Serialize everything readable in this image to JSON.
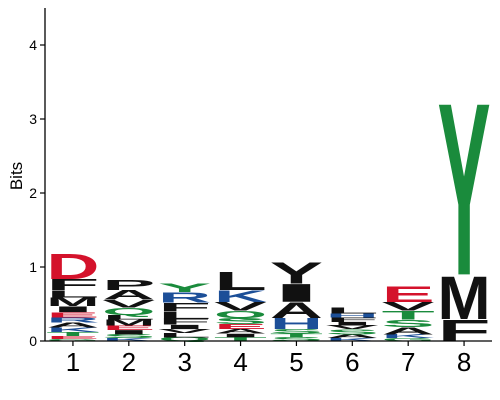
{
  "chart_data": {
    "type": "sequence-logo",
    "ylabel": "Bits",
    "ylim": [
      0,
      4.5
    ],
    "yticks": [
      0,
      1,
      2,
      3,
      4
    ],
    "grid": false,
    "colors": {
      "acidic": "#d4122b",
      "basic": "#1c4f98",
      "polar": "#1a8b3c",
      "hydrophobic": "#111111",
      "neutral": "#8a8a8a"
    },
    "positions": [
      {
        "position": "1",
        "letters": [
          {
            "letter": "G",
            "bits": 0.03,
            "color": "#1a8b3c"
          },
          {
            "letter": "E",
            "bits": 0.04,
            "color": "#d4122b"
          },
          {
            "letter": "T",
            "bits": 0.05,
            "color": "#1a8b3c"
          },
          {
            "letter": "K",
            "bits": 0.06,
            "color": "#1c4f98"
          },
          {
            "letter": "A",
            "bits": 0.07,
            "color": "#111111"
          },
          {
            "letter": "R",
            "bits": 0.07,
            "color": "#1c4f98"
          },
          {
            "letter": "E",
            "bits": 0.07,
            "color": "#d4122b"
          },
          {
            "letter": "I",
            "bits": 0.08,
            "color": "#111111"
          },
          {
            "letter": "M",
            "bits": 0.12,
            "color": "#111111"
          },
          {
            "letter": "L",
            "bits": 0.1,
            "color": "#111111"
          },
          {
            "letter": "F",
            "bits": 0.15,
            "color": "#111111"
          },
          {
            "letter": "D",
            "bits": 0.35,
            "color": "#d4122b"
          }
        ]
      },
      {
        "position": "2",
        "letters": [
          {
            "letter": "K",
            "bits": 0.04,
            "color": "#1c4f98"
          },
          {
            "letter": "S",
            "bits": 0.05,
            "color": "#1a8b3c"
          },
          {
            "letter": "I",
            "bits": 0.06,
            "color": "#111111"
          },
          {
            "letter": "E",
            "bits": 0.06,
            "color": "#d4122b"
          },
          {
            "letter": "M",
            "bits": 0.08,
            "color": "#111111"
          },
          {
            "letter": "L",
            "bits": 0.06,
            "color": "#111111"
          },
          {
            "letter": "Q",
            "bits": 0.1,
            "color": "#1a8b3c"
          },
          {
            "letter": "V",
            "bits": 0.11,
            "color": "#111111"
          },
          {
            "letter": "A",
            "bits": 0.13,
            "color": "#111111"
          },
          {
            "letter": "P",
            "bits": 0.14,
            "color": "#111111"
          }
        ]
      },
      {
        "position": "3",
        "letters": [
          {
            "letter": "Q",
            "bits": 0.05,
            "color": "#1a8b3c"
          },
          {
            "letter": "L",
            "bits": 0.06,
            "color": "#111111"
          },
          {
            "letter": "V",
            "bits": 0.05,
            "color": "#111111"
          },
          {
            "letter": "I",
            "bits": 0.06,
            "color": "#111111"
          },
          {
            "letter": "F",
            "bits": 0.08,
            "color": "#111111"
          },
          {
            "letter": "L",
            "bits": 0.1,
            "color": "#111111"
          },
          {
            "letter": "F",
            "bits": 0.12,
            "color": "#111111"
          },
          {
            "letter": "R",
            "bits": 0.14,
            "color": "#1c4f98"
          },
          {
            "letter": "Y",
            "bits": 0.12,
            "color": "#1a8b3c"
          }
        ]
      },
      {
        "position": "4",
        "letters": [
          {
            "letter": "T",
            "bits": 0.05,
            "color": "#1a8b3c"
          },
          {
            "letter": "I",
            "bits": 0.05,
            "color": "#111111"
          },
          {
            "letter": "A",
            "bits": 0.06,
            "color": "#111111"
          },
          {
            "letter": "E",
            "bits": 0.07,
            "color": "#d4122b"
          },
          {
            "letter": "S",
            "bits": 0.08,
            "color": "#1a8b3c"
          },
          {
            "letter": "Q",
            "bits": 0.1,
            "color": "#1a8b3c"
          },
          {
            "letter": "V",
            "bits": 0.12,
            "color": "#111111"
          },
          {
            "letter": "K",
            "bits": 0.16,
            "color": "#1c4f98"
          },
          {
            "letter": "L",
            "bits": 0.25,
            "color": "#111111"
          }
        ]
      },
      {
        "position": "5",
        "letters": [
          {
            "letter": "S",
            "bits": 0.05,
            "color": "#1a8b3c"
          },
          {
            "letter": "T",
            "bits": 0.05,
            "color": "#1a8b3c"
          },
          {
            "letter": "S",
            "bits": 0.06,
            "color": "#1a8b3c"
          },
          {
            "letter": "H",
            "bits": 0.15,
            "color": "#1c4f98"
          },
          {
            "letter": "A",
            "bits": 0.22,
            "color": "#111111"
          },
          {
            "letter": "I",
            "bits": 0.25,
            "color": "#111111"
          },
          {
            "letter": "Y",
            "bits": 0.3,
            "color": "#111111"
          }
        ]
      },
      {
        "position": "6",
        "letters": [
          {
            "letter": "K",
            "bits": 0.04,
            "color": "#1c4f98"
          },
          {
            "letter": "A",
            "bits": 0.05,
            "color": "#111111"
          },
          {
            "letter": "S",
            "bits": 0.07,
            "color": "#1a8b3c"
          },
          {
            "letter": "V",
            "bits": 0.05,
            "color": "#111111"
          },
          {
            "letter": "I",
            "bits": 0.05,
            "color": "#111111"
          },
          {
            "letter": "F",
            "bits": 0.06,
            "color": "#111111"
          },
          {
            "letter": "H",
            "bits": 0.05,
            "color": "#1c4f98"
          },
          {
            "letter": "L",
            "bits": 0.08,
            "color": "#111111"
          }
        ]
      },
      {
        "position": "7",
        "letters": [
          {
            "letter": "G",
            "bits": 0.04,
            "color": "#1a8b3c"
          },
          {
            "letter": "K",
            "bits": 0.05,
            "color": "#1c4f98"
          },
          {
            "letter": "A",
            "bits": 0.1,
            "color": "#111111"
          },
          {
            "letter": "S",
            "bits": 0.1,
            "color": "#1a8b3c"
          },
          {
            "letter": "T",
            "bits": 0.12,
            "color": "#1a8b3c"
          },
          {
            "letter": "V",
            "bits": 0.12,
            "color": "#111111"
          },
          {
            "letter": "E",
            "bits": 0.22,
            "color": "#d4122b"
          }
        ]
      },
      {
        "position": "8",
        "letters": [
          {
            "letter": "F",
            "bits": 0.3,
            "color": "#111111"
          },
          {
            "letter": "M",
            "bits": 0.6,
            "color": "#111111"
          },
          {
            "letter": "Y",
            "bits": 2.4,
            "color": "#1a8b3c"
          }
        ]
      }
    ]
  }
}
